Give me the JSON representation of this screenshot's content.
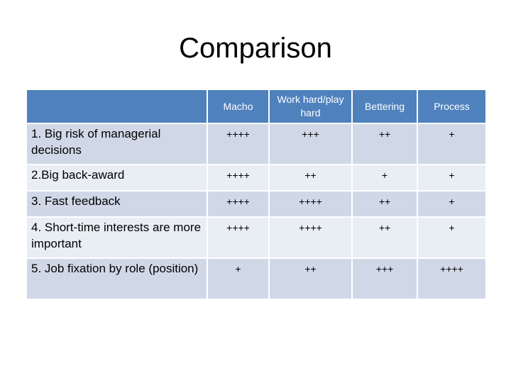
{
  "title": "Comparison",
  "table": {
    "headers": [
      "",
      "Macho",
      "Work hard/play hard",
      "Bettering",
      "Process"
    ],
    "rows": [
      {
        "label": "1. Big risk of managerial decisions",
        "values": [
          "++++",
          "+++",
          "++",
          "+"
        ]
      },
      {
        "label": "2.Big back-award",
        "values": [
          "++++",
          "++",
          "+",
          "+"
        ]
      },
      {
        "label": "3. Fast feedback",
        "values": [
          "++++",
          "++++",
          "++",
          "+"
        ]
      },
      {
        "label": "4. Short-time interests are more important",
        "values": [
          "++++",
          "++++",
          "++",
          "+"
        ]
      },
      {
        "label": "5. Job fixation by role (position)",
        "values": [
          "+",
          "++",
          "+++",
          "++++"
        ]
      }
    ]
  },
  "colors": {
    "header_bg": "#4f81bd",
    "row_band_dark": "#d0d8e8",
    "row_band_light": "#e9edf4"
  }
}
